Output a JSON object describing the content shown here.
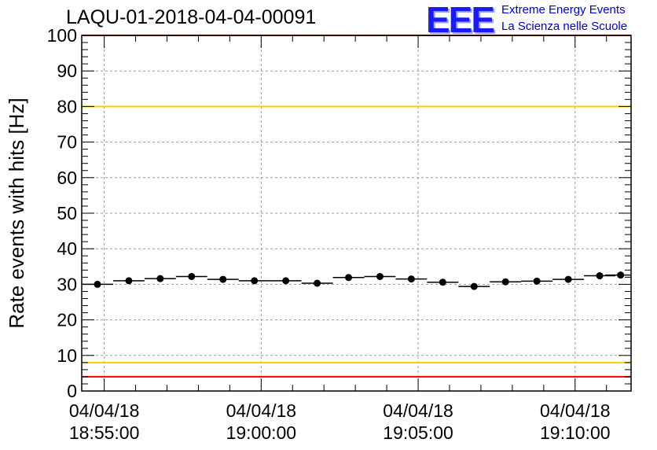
{
  "title": "LAQU-01-2018-04-04-00091",
  "logo": {
    "mark": "EEE",
    "line1": "Extreme Energy Events",
    "line2": "La Scienza nelle Scuole",
    "color": "#0000ff"
  },
  "chart_data": {
    "type": "scatter",
    "ylabel": "Rate events with hits [Hz]",
    "ylim": [
      0,
      100
    ],
    "yticks": [
      0,
      10,
      20,
      30,
      40,
      50,
      60,
      70,
      80,
      90,
      100
    ],
    "xlim": [
      "2018-04-04 18:54:17",
      "2018-04-04 19:11:47"
    ],
    "xticks": [
      {
        "date": "04/04/18",
        "time": "18:55:00"
      },
      {
        "date": "04/04/18",
        "time": "19:00:00"
      },
      {
        "date": "04/04/18",
        "time": "19:05:00"
      },
      {
        "date": "04/04/18",
        "time": "19:10:00"
      }
    ],
    "grid": true,
    "bin_width_seconds": 60,
    "reference_lines": [
      {
        "y": 100,
        "color": "#ff0000"
      },
      {
        "y": 80,
        "color": "#ffcc00"
      },
      {
        "y": 8,
        "color": "#ffcc00"
      },
      {
        "y": 4,
        "color": "#ff0000"
      }
    ],
    "x": [
      "18:54:47",
      "18:55:47",
      "18:56:47",
      "18:57:47",
      "18:58:47",
      "18:59:47",
      "19:00:47",
      "19:01:47",
      "19:02:47",
      "19:03:47",
      "19:04:47",
      "19:05:47",
      "19:06:47",
      "19:07:47",
      "19:08:47",
      "19:09:47",
      "19:10:47",
      "19:11:27"
    ],
    "y": [
      30.0,
      31.0,
      31.6,
      32.2,
      31.4,
      31.0,
      31.0,
      30.3,
      31.9,
      32.2,
      31.5,
      30.6,
      29.4,
      30.7,
      30.9,
      31.4,
      32.4,
      32.6
    ],
    "marker_color": "#000000"
  }
}
